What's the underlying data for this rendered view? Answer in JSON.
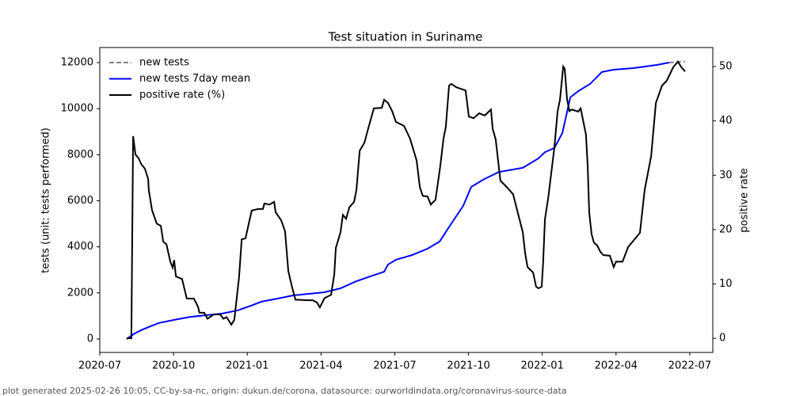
{
  "chart_data": {
    "type": "line",
    "title": "Test situation in Suriname",
    "ylabel": "tests (unit: tests performed)",
    "y2label": "positive rate",
    "footer": "plot generated 2025-02-26 10:05, CC-by-sa-nc, origin: dukun.de/corona, datasource: ourworldindata.org/coronavirus-source-data",
    "legend": "upper left",
    "xlim": [
      2020.5,
      2022.578
    ],
    "xticks": [
      {
        "value": 2020.5,
        "label": "2020-07"
      },
      {
        "value": 2020.75,
        "label": "2020-10"
      },
      {
        "value": 2021.0,
        "label": "2021-01"
      },
      {
        "value": 2021.25,
        "label": "2021-04"
      },
      {
        "value": 2021.5,
        "label": "2021-07"
      },
      {
        "value": 2021.75,
        "label": "2021-10"
      },
      {
        "value": 2022.0,
        "label": "2022-01"
      },
      {
        "value": 2022.25,
        "label": "2022-04"
      },
      {
        "value": 2022.5,
        "label": "2022-07"
      }
    ],
    "ylim": [
      -584,
      12652
    ],
    "yticks": [
      0,
      2000,
      4000,
      6000,
      8000,
      10000,
      12000
    ],
    "y2lim": [
      -2.6,
      53.5
    ],
    "y2ticks": [
      0,
      10,
      20,
      30,
      40,
      50
    ],
    "series": [
      {
        "name": "new tests",
        "color": "#808080",
        "linestyle": "dashed",
        "x": [
          2022.43,
          2022.457,
          2022.484
        ],
        "values": [
          12000,
          12020,
          12050
        ]
      },
      {
        "name": "new tests 7day mean",
        "color": "#0000ff",
        "linestyle": "solid",
        "x": [
          2020.591,
          2020.618,
          2020.645,
          2020.699,
          2020.752,
          2020.806,
          2020.86,
          2020.913,
          2020.967,
          2021.005,
          2021.048,
          2021.101,
          2021.155,
          2021.209,
          2021.262,
          2021.316,
          2021.37,
          2021.424,
          2021.464,
          2021.477,
          2021.504,
          2021.558,
          2021.611,
          2021.652,
          2021.692,
          2021.732,
          2021.759,
          2021.799,
          2021.853,
          2021.934,
          2021.987,
          2022.009,
          2022.041,
          2022.068,
          2022.095,
          2022.122,
          2022.162,
          2022.202,
          2022.242,
          2022.309,
          2022.39,
          2022.43
        ],
        "values": [
          0,
          240,
          410,
          690,
          830,
          960,
          1030,
          1100,
          1240,
          1410,
          1620,
          1750,
          1890,
          1960,
          2030,
          2200,
          2510,
          2750,
          2920,
          3230,
          3440,
          3640,
          3920,
          4230,
          5020,
          5780,
          6600,
          6910,
          7250,
          7430,
          7840,
          8110,
          8290,
          8940,
          10490,
          10760,
          11070,
          11590,
          11690,
          11760,
          11900,
          12000
        ]
      },
      {
        "name": "positive rate (%)",
        "color": "#000000",
        "linestyle": "solid",
        "axis": "y2",
        "x": [
          2020.591,
          2020.607,
          2020.613,
          2020.621,
          2020.632,
          2020.64,
          2020.653,
          2020.664,
          2020.666,
          2020.677,
          2020.693,
          2020.707,
          2020.715,
          2020.726,
          2020.739,
          2020.747,
          2020.752,
          2020.758,
          2020.779,
          2020.795,
          2020.819,
          2020.833,
          2020.838,
          2020.854,
          2020.865,
          2020.887,
          2020.908,
          2020.919,
          2020.93,
          2020.946,
          2020.956,
          2020.972,
          2020.981,
          2020.994,
          2021.005,
          2021.015,
          2021.037,
          2021.053,
          2021.058,
          2021.075,
          2021.091,
          2021.096,
          2021.115,
          2021.128,
          2021.139,
          2021.15,
          2021.163,
          2021.209,
          2021.222,
          2021.236,
          2021.246,
          2021.262,
          2021.284,
          2021.295,
          2021.3,
          2021.316,
          2021.324,
          2021.335,
          2021.346,
          2021.362,
          2021.37,
          2021.381,
          2021.397,
          2021.41,
          2021.429,
          2021.456,
          2021.464,
          2021.477,
          2021.491,
          2021.504,
          2021.531,
          2021.552,
          2021.563,
          2021.574,
          2021.585,
          2021.595,
          2021.611,
          2021.622,
          2021.638,
          2021.654,
          2021.665,
          2021.673,
          2021.684,
          2021.692,
          2021.708,
          2021.74,
          2021.751,
          2021.767,
          2021.786,
          2021.805,
          2021.826,
          2021.832,
          2021.842,
          2021.858,
          2021.88,
          2021.901,
          2021.934,
          2021.942,
          2021.95,
          2021.969,
          2021.979,
          2021.987,
          2021.998,
          2022.003,
          2022.009,
          2022.02,
          2022.041,
          2022.052,
          2022.06,
          2022.071,
          2022.076,
          2022.084,
          2022.092,
          2022.1,
          2022.122,
          2022.13,
          2022.148,
          2022.154,
          2022.159,
          2022.167,
          2022.175,
          2022.186,
          2022.197,
          2022.207,
          2022.229,
          2022.242,
          2022.25,
          2022.272,
          2022.291,
          2022.331,
          2022.347,
          2022.369,
          2022.385,
          2022.406,
          2022.422,
          2022.444,
          2022.46,
          2022.471,
          2022.484
        ],
        "values": [
          0,
          0,
          37.2,
          33.8,
          33.1,
          32.1,
          31.2,
          29.3,
          27.3,
          23.6,
          21.1,
          20.7,
          17.8,
          17.3,
          14.1,
          13.0,
          14.4,
          11.4,
          10.9,
          7.3,
          7.3,
          5.8,
          4.7,
          4.7,
          3.6,
          4.4,
          4.4,
          3.6,
          3.9,
          2.5,
          3.4,
          11.2,
          18.2,
          18.4,
          21.1,
          23.5,
          23.8,
          23.8,
          24.8,
          24.6,
          25.1,
          23.2,
          21.7,
          19.7,
          12.4,
          9.8,
          7.1,
          7.0,
          7.0,
          6.6,
          5.7,
          7.4,
          8.0,
          11.8,
          16.6,
          19.5,
          22.7,
          22.0,
          24.1,
          25.1,
          27.3,
          34.5,
          36.0,
          38.6,
          42.3,
          42.4,
          43.9,
          43.3,
          41.8,
          39.8,
          39.1,
          36.7,
          34.7,
          32.7,
          27.8,
          26.2,
          26.1,
          24.6,
          25.5,
          31.6,
          36.7,
          38.9,
          46.5,
          46.8,
          46.2,
          45.6,
          40.8,
          40.5,
          41.4,
          41.0,
          42.1,
          38.5,
          36.6,
          29.0,
          27.8,
          26.5,
          19.5,
          15.6,
          13.1,
          12.1,
          9.5,
          9.2,
          9.5,
          14.1,
          21.9,
          25.8,
          35.1,
          41.8,
          43.9,
          50.0,
          49.6,
          44.0,
          41.8,
          42.1,
          41.7,
          42.3,
          37.5,
          31.6,
          23.2,
          19.2,
          17.6,
          17.1,
          15.9,
          15.3,
          15.2,
          13.1,
          14.1,
          14.1,
          16.8,
          19.4,
          27.3,
          33.5,
          43.3,
          46.5,
          47.4,
          49.9,
          50.9,
          49.9,
          49.1
        ]
      }
    ]
  }
}
